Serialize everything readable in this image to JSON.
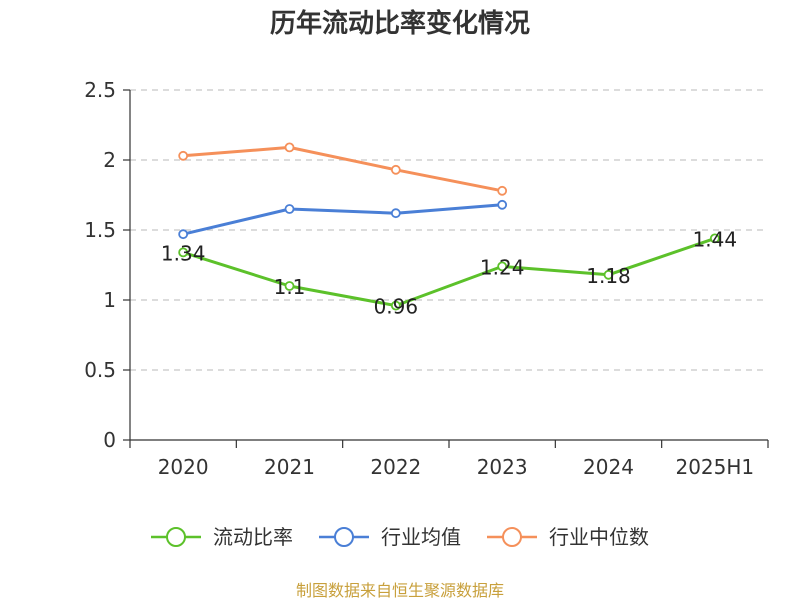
{
  "chart_data": {
    "type": "line",
    "title": "历年流动比率变化情况",
    "categories": [
      "2020",
      "2021",
      "2022",
      "2023",
      "2024",
      "2025H1"
    ],
    "ylim": [
      0,
      2.5
    ],
    "y_ticks": [
      0,
      0.5,
      1,
      1.5,
      2,
      2.5
    ],
    "y_tick_labels": [
      "0",
      "0.5",
      "1",
      "1.5",
      "2",
      "2.5"
    ],
    "grid": true,
    "legend_position": "bottom",
    "series": [
      {
        "name": "流动比率",
        "color": "#5cc12a",
        "values": [
          1.34,
          1.1,
          0.96,
          1.24,
          1.18,
          1.44
        ],
        "data_labels": [
          "1.34",
          "1.1",
          "0.96",
          "1.24",
          "1.18",
          "1.44"
        ]
      },
      {
        "name": "行业均值",
        "color": "#4a7fd6",
        "values": [
          1.47,
          1.65,
          1.62,
          1.68,
          null,
          null
        ]
      },
      {
        "name": "行业中位数",
        "color": "#f5905a",
        "values": [
          2.03,
          2.09,
          1.93,
          1.78,
          null,
          null
        ]
      }
    ],
    "source": "制图数据来自恒生聚源数据库"
  }
}
